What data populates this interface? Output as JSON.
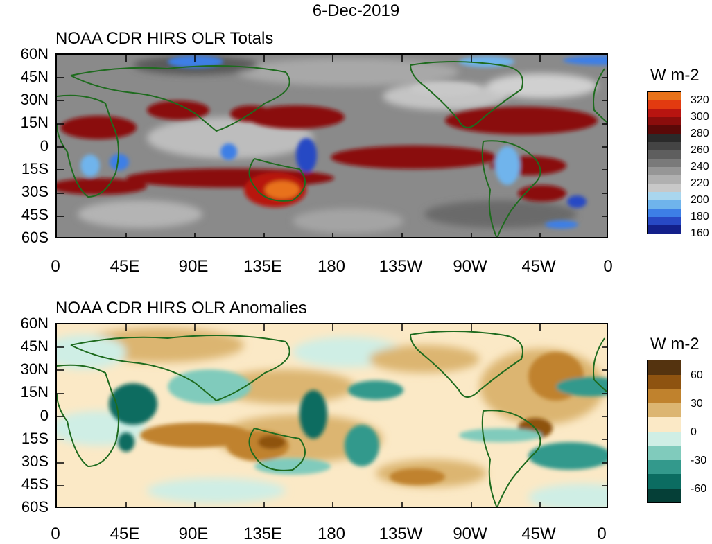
{
  "title": "6-Dec-2019",
  "latitude_labels": [
    "60N",
    "45N",
    "30N",
    "15N",
    "0",
    "15S",
    "30S",
    "45S",
    "60S"
  ],
  "longitude_labels": [
    "0",
    "45E",
    "90E",
    "135E",
    "180",
    "135W",
    "90W",
    "45W",
    "0"
  ],
  "panels": [
    {
      "title": "NOAA CDR HIRS OLR Totals",
      "units": "W m-2",
      "colorbar_colors": [
        "#e8721a",
        "#e23a10",
        "#b81410",
        "#8a0d0c",
        "#5a0908",
        "#2a2a2a",
        "#444444",
        "#5e5e5e",
        "#7a7a7a",
        "#969696",
        "#b0b0b0",
        "#c8c8c8",
        "#a9d6ee",
        "#6fb4ec",
        "#3d7fe6",
        "#2849c4",
        "#13208a"
      ],
      "colorbar_labels": [
        "320",
        "300",
        "280",
        "260",
        "240",
        "220",
        "200",
        "180",
        "160"
      ]
    },
    {
      "title": "NOAA CDR HIRS OLR Anomalies",
      "units": "W m-2",
      "colorbar_colors": [
        "#54330f",
        "#8e5310",
        "#c0822d",
        "#dcb571",
        "#fbe9c6",
        "#cfeee5",
        "#80cbbc",
        "#33998c",
        "#0b6c61",
        "#053f37"
      ],
      "colorbar_labels": [
        "60",
        "30",
        "0",
        "-30",
        "-60"
      ]
    }
  ]
}
